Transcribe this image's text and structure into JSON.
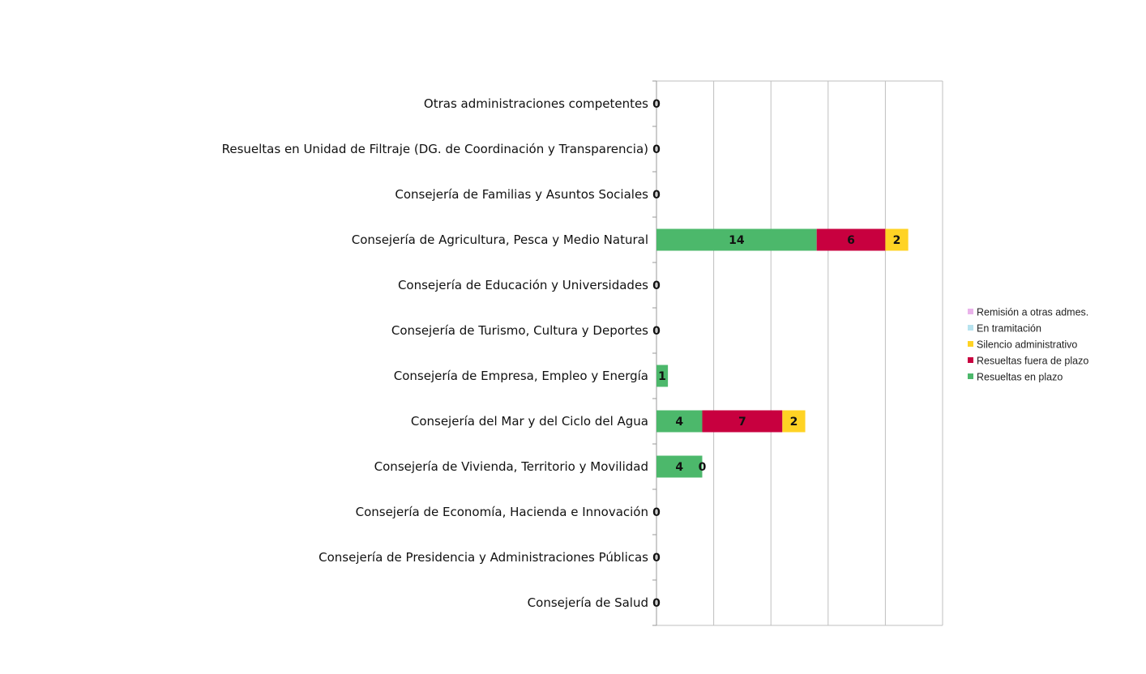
{
  "chart_data": {
    "type": "bar",
    "orientation": "horizontal",
    "stacked": true,
    "categories": [
      "Otras administraciones competentes",
      "Resueltas en Unidad de Filtraje (DG. de  Coordinación y Transparencia)",
      "Consejería de Familias y Asuntos Sociales",
      "Consejería de Agricultura, Pesca y  Medio Natural",
      "Consejería de Educación y Universidades",
      "Consejería de Turismo, Cultura y Deportes",
      "Consejería de Empresa, Empleo y Energía",
      "Consejería del Mar y del Ciclo del Agua",
      "Consejería de Vivienda, Territorio y Movilidad",
      "Consejería de Economía, Hacienda e Innovación",
      "Consejería de Presidencia y Administraciones Públicas",
      "Consejería de Salud"
    ],
    "series": [
      {
        "name": "Resueltas en plazo",
        "color": "#4cb86b",
        "values": [
          0,
          0,
          0,
          14,
          0,
          0,
          1,
          4,
          4,
          0,
          0,
          0
        ]
      },
      {
        "name": "Resueltas fuera de plazo",
        "color": "#c8003f",
        "values": [
          0,
          0,
          0,
          6,
          0,
          0,
          0,
          7,
          0,
          0,
          0,
          0
        ]
      },
      {
        "name": "Silencio administrativo",
        "color": "#ffd324",
        "values": [
          0,
          0,
          0,
          2,
          0,
          0,
          0,
          2,
          0,
          0,
          0,
          0
        ]
      },
      {
        "name": "En tramitación",
        "color": "#b7e3ef",
        "values": [
          0,
          0,
          0,
          0,
          0,
          0,
          0,
          0,
          0,
          0,
          0,
          0
        ]
      },
      {
        "name": "Remisión a otras admes.",
        "color": "#e9b3ea",
        "values": [
          0,
          0,
          0,
          0,
          0,
          0,
          0,
          0,
          0,
          0,
          0,
          0
        ]
      }
    ],
    "data_labels": [
      [
        "0"
      ],
      [
        "0"
      ],
      [
        "0"
      ],
      [
        "14",
        "6",
        "2"
      ],
      [
        "0"
      ],
      [
        "0"
      ],
      [
        "1"
      ],
      [
        "4",
        "7",
        "2"
      ],
      [
        "4",
        "0"
      ],
      [
        "0"
      ],
      [
        "0"
      ],
      [
        "0"
      ]
    ],
    "xlim": [
      0,
      25
    ],
    "x_gridlines": [
      0,
      5,
      10,
      15,
      20,
      25
    ],
    "title": "",
    "xlabel": "",
    "ylabel": "",
    "grid": true,
    "legend_position": "right",
    "legend_order": [
      "Remisión a otras admes.",
      "En tramitación",
      "Silencio administrativo",
      "Resueltas fuera de plazo",
      "Resueltas en plazo"
    ]
  }
}
